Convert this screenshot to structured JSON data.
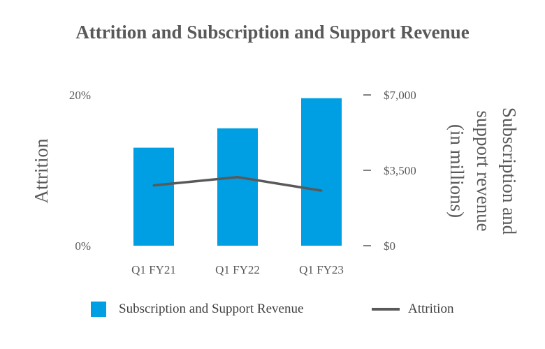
{
  "chart_data": {
    "type": "bar",
    "title": "Attrition and Subscription and Support Revenue",
    "categories": [
      "Q1 FY21",
      "Q1 FY22",
      "Q1 FY23"
    ],
    "series": [
      {
        "name": "Subscription and Support Revenue",
        "type": "bar",
        "axis": "right",
        "color": "#009FE3",
        "values": [
          4550,
          5450,
          6850
        ]
      },
      {
        "name": "Attrition",
        "type": "line",
        "axis": "left",
        "color": "#595959",
        "values": [
          8.0,
          9.1,
          7.3
        ]
      }
    ],
    "left_axis": {
      "label": "Attrition",
      "ylim": [
        0,
        20
      ],
      "ticks": [
        {
          "value": 0,
          "label": "0%"
        },
        {
          "value": 20,
          "label": "20%"
        }
      ]
    },
    "right_axis": {
      "label_lines": [
        "Subscription and",
        "support revenue",
        "(in millions)"
      ],
      "ylim": [
        0,
        7000
      ],
      "ticks": [
        {
          "value": 0,
          "label": "$0"
        },
        {
          "value": 3500,
          "label": "$3,500"
        },
        {
          "value": 7000,
          "label": "$7,000"
        }
      ]
    },
    "grid": false,
    "legend_position": "bottom"
  }
}
